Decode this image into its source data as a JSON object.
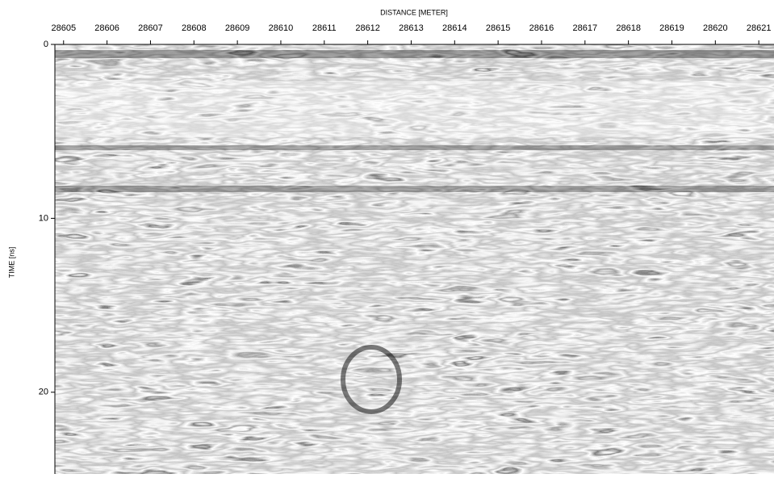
{
  "chart_data": {
    "type": "image",
    "xlabel": "DISTANCE [METER]",
    "ylabel": "TIME [ns]",
    "xlim": [
      28604.8,
      28621.35
    ],
    "xticks": [
      28605,
      28606,
      28607,
      28608,
      28609,
      28610,
      28611,
      28612,
      28613,
      28614,
      28615,
      28616,
      28617,
      28618,
      28619,
      28620,
      28621
    ],
    "ylim": [
      0,
      24.7
    ],
    "yticks": [
      0,
      10,
      20
    ]
  }
}
